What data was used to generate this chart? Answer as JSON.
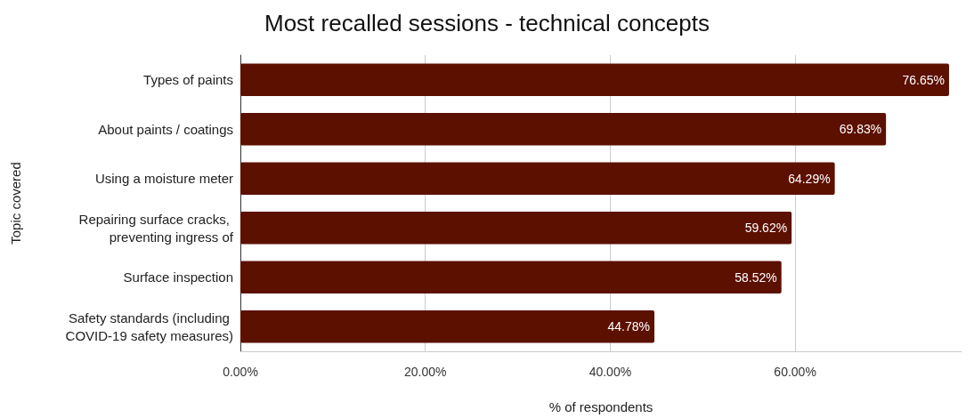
{
  "chart_data": {
    "type": "bar",
    "orientation": "horizontal",
    "title": "Most recalled sessions - technical concepts",
    "xlabel": "% of respondents",
    "ylabel": "Topic covered",
    "categories": [
      "Types of paints",
      "About paints / coatings",
      "Using a moisture meter",
      "Repairing surface cracks, preventing ingress of",
      "Surface inspection",
      "Safety standards (including COVID-19 safety measures)"
    ],
    "values": [
      76.65,
      69.83,
      64.29,
      59.62,
      58.52,
      44.78
    ],
    "value_labels": [
      "76.65%",
      "69.83%",
      "64.29%",
      "59.62%",
      "58.52%",
      "44.78%"
    ],
    "color": "#5c1000",
    "xlim": [
      0,
      78
    ],
    "xticks": [
      {
        "value": 0,
        "label": "0.00%"
      },
      {
        "value": 20,
        "label": "20.00%"
      },
      {
        "value": 40,
        "label": "40.00%"
      },
      {
        "value": 60,
        "label": "60.00%"
      }
    ],
    "grid": "x"
  }
}
